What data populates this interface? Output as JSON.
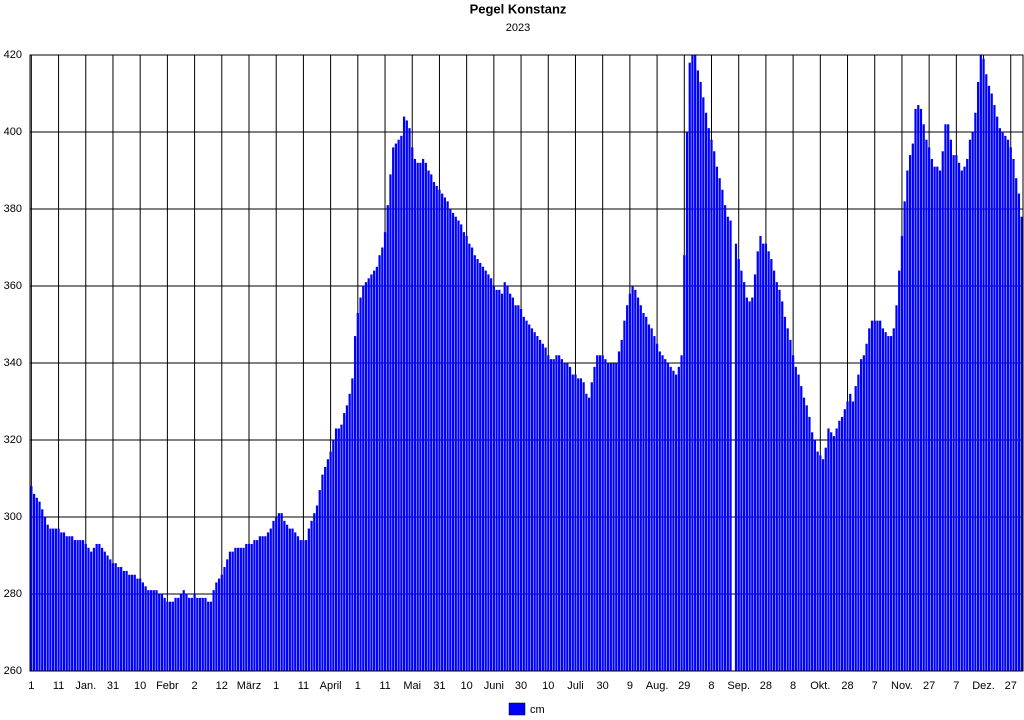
{
  "chart_data": {
    "type": "bar",
    "title": "Pegel Konstanz",
    "subtitle": "2023",
    "categories": [
      "1",
      null,
      null,
      null,
      null,
      null,
      null,
      null,
      null,
      null,
      "11",
      null,
      null,
      null,
      null,
      null,
      null,
      null,
      null,
      null,
      "Jan.",
      null,
      null,
      null,
      null,
      null,
      null,
      null,
      null,
      null,
      "31",
      null,
      null,
      null,
      null,
      null,
      null,
      null,
      null,
      null,
      "10",
      null,
      null,
      null,
      null,
      null,
      null,
      null,
      null,
      null,
      "Febr",
      null,
      null,
      null,
      null,
      null,
      null,
      null,
      null,
      null,
      "2",
      null,
      null,
      null,
      null,
      null,
      null,
      null,
      null,
      null,
      "12",
      null,
      null,
      null,
      null,
      null,
      null,
      null,
      null,
      null,
      "März",
      null,
      null,
      null,
      null,
      null,
      null,
      null,
      null,
      null,
      "1",
      null,
      null,
      null,
      null,
      null,
      null,
      null,
      null,
      null,
      "11",
      null,
      null,
      null,
      null,
      null,
      null,
      null,
      null,
      null,
      "April",
      null,
      null,
      null,
      null,
      null,
      null,
      null,
      null,
      null,
      "1",
      null,
      null,
      null,
      null,
      null,
      null,
      null,
      null,
      null,
      "11",
      null,
      null,
      null,
      null,
      null,
      null,
      null,
      null,
      null,
      "Mai",
      null,
      null,
      null,
      null,
      null,
      null,
      null,
      null,
      null,
      "31",
      null,
      null,
      null,
      null,
      null,
      null,
      null,
      null,
      null,
      "10",
      null,
      null,
      null,
      null,
      null,
      null,
      null,
      null,
      null,
      "Juni",
      null,
      null,
      null,
      null,
      null,
      null,
      null,
      null,
      null,
      "30",
      null,
      null,
      null,
      null,
      null,
      null,
      null,
      null,
      null,
      "10",
      null,
      null,
      null,
      null,
      null,
      null,
      null,
      null,
      null,
      "Juli",
      null,
      null,
      null,
      null,
      null,
      null,
      null,
      null,
      null,
      "30",
      null,
      null,
      null,
      null,
      null,
      null,
      null,
      null,
      null,
      "9",
      null,
      null,
      null,
      null,
      null,
      null,
      null,
      null,
      null,
      "Aug.",
      null,
      null,
      null,
      null,
      null,
      null,
      null,
      null,
      null,
      "29",
      null,
      null,
      null,
      null,
      null,
      null,
      null,
      null,
      null,
      "8",
      null,
      null,
      null,
      null,
      null,
      null,
      null,
      null,
      null,
      "Sep.",
      null,
      null,
      null,
      null,
      null,
      null,
      null,
      null,
      null,
      "28",
      null,
      null,
      null,
      null,
      null,
      null,
      null,
      null,
      null,
      "8",
      null,
      null,
      null,
      null,
      null,
      null,
      null,
      null,
      null,
      "Okt.",
      null,
      null,
      null,
      null,
      null,
      null,
      null,
      null,
      null,
      "28",
      null,
      null,
      null,
      null,
      null,
      null,
      null,
      null,
      null,
      "7",
      null,
      null,
      null,
      null,
      null,
      null,
      null,
      null,
      null,
      "Nov.",
      null,
      null,
      null,
      null,
      null,
      null,
      null,
      null,
      null,
      "27",
      null,
      null,
      null,
      null,
      null,
      null,
      null,
      null,
      null,
      "7",
      null,
      null,
      null,
      null,
      null,
      null,
      null,
      null,
      null,
      "Dez.",
      null,
      null,
      null,
      null,
      null,
      null,
      null,
      null,
      null,
      "27",
      null,
      null,
      null,
      null
    ],
    "series": [
      {
        "name": "cm",
        "color": "#0000ff",
        "values": [
          308,
          306,
          305,
          304,
          302,
          300,
          298,
          297,
          297,
          297,
          297,
          296,
          296,
          295,
          295,
          295,
          294,
          294,
          294,
          294,
          293,
          292,
          291,
          292,
          293,
          293,
          292,
          291,
          290,
          289,
          288,
          288,
          287,
          287,
          286,
          286,
          285,
          285,
          285,
          284,
          284,
          283,
          282,
          281,
          281,
          281,
          281,
          280,
          280,
          279,
          278,
          278,
          278,
          279,
          279,
          280,
          281,
          280,
          279,
          279,
          280,
          279,
          279,
          279,
          279,
          278,
          278,
          281,
          283,
          284,
          285,
          287,
          289,
          291,
          291,
          292,
          292,
          292,
          292,
          293,
          293,
          293,
          294,
          294,
          295,
          295,
          295,
          296,
          297,
          299,
          300,
          301,
          301,
          299,
          298,
          297,
          297,
          296,
          295,
          294,
          294,
          294,
          297,
          299,
          301,
          303,
          307,
          311,
          313,
          315,
          317,
          320,
          323,
          323,
          324,
          327,
          329,
          332,
          336,
          347,
          353,
          357,
          360,
          361,
          362,
          363,
          364,
          365,
          368,
          370,
          374,
          381,
          389,
          396,
          397,
          398,
          399,
          404,
          403,
          401,
          396,
          393,
          392,
          392,
          393,
          392,
          390,
          389,
          387,
          386,
          385,
          384,
          383,
          382,
          380,
          379,
          378,
          377,
          376,
          374,
          373,
          371,
          370,
          368,
          367,
          366,
          365,
          364,
          363,
          362,
          360,
          359,
          359,
          358,
          361,
          360,
          358,
          357,
          355,
          355,
          354,
          352,
          351,
          350,
          349,
          348,
          347,
          346,
          345,
          344,
          342,
          341,
          341,
          342,
          342,
          341,
          340,
          340,
          339,
          337,
          337,
          336,
          336,
          335,
          332,
          331,
          335,
          339,
          342,
          342,
          342,
          341,
          340,
          340,
          340,
          340,
          343,
          346,
          351,
          355,
          358,
          360,
          359,
          357,
          355,
          353,
          352,
          350,
          349,
          347,
          345,
          343,
          342,
          341,
          340,
          339,
          338,
          337,
          339,
          342,
          368,
          400,
          418,
          420,
          420,
          416,
          413,
          409,
          405,
          401,
          398,
          395,
          391,
          388,
          385,
          381,
          378,
          377,
          null,
          371,
          367,
          364,
          361,
          357,
          356,
          357,
          363,
          369,
          373,
          371,
          371,
          369,
          367,
          364,
          361,
          359,
          356,
          352,
          349,
          346,
          342,
          339,
          337,
          334,
          331,
          329,
          326,
          322,
          320,
          317,
          316,
          315,
          318,
          323,
          322,
          321,
          323,
          325,
          326,
          328,
          330,
          332,
          330,
          334,
          337,
          341,
          342,
          345,
          349,
          351,
          351,
          351,
          351,
          349,
          348,
          347,
          347,
          349,
          355,
          364,
          373,
          382,
          390,
          394,
          397,
          406,
          407,
          406,
          402,
          398,
          396,
          393,
          391,
          391,
          390,
          395,
          402,
          402,
          398,
          394,
          394,
          392,
          390,
          391,
          393,
          398,
          400,
          405,
          413,
          420,
          419,
          415,
          412,
          410,
          407,
          404,
          401,
          400,
          399,
          398,
          396,
          393,
          388,
          384,
          378
        ]
      }
    ],
    "ylim": [
      260,
      420
    ],
    "yticks": [
      260,
      280,
      300,
      320,
      340,
      360,
      380,
      400,
      420
    ],
    "grid": true
  }
}
